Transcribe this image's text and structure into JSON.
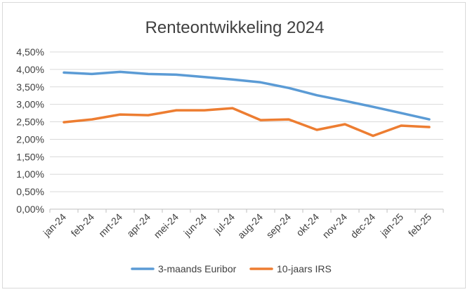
{
  "chart_data": {
    "type": "line",
    "title": "Renteontwikkeling 2024",
    "xlabel": "",
    "ylabel": "",
    "categories": [
      "jan-24",
      "feb-24",
      "mrt-24",
      "apr-24",
      "mei-24",
      "jun-24",
      "jul-24",
      "aug-24",
      "sep-24",
      "okt-24",
      "nov-24",
      "dec-24",
      "jan-25",
      "feb-25"
    ],
    "y_ticks": [
      "0,00%",
      "0,50%",
      "1,00%",
      "1,50%",
      "2,00%",
      "2,50%",
      "3,00%",
      "3,50%",
      "4,00%",
      "4,50%"
    ],
    "ylim": [
      0,
      4.5
    ],
    "grid": true,
    "legend_position": "bottom",
    "series": [
      {
        "name": "3-maands Euribor",
        "color": "#5b9bd5",
        "values": [
          3.91,
          3.87,
          3.93,
          3.87,
          3.85,
          3.78,
          3.71,
          3.63,
          3.47,
          3.26,
          3.1,
          2.93,
          2.75,
          2.57
        ]
      },
      {
        "name": "10-jaars IRS",
        "color": "#ed7d31",
        "values": [
          2.49,
          2.57,
          2.71,
          2.69,
          2.83,
          2.83,
          2.89,
          2.55,
          2.57,
          2.27,
          2.43,
          2.1,
          2.39,
          2.35
        ]
      }
    ]
  }
}
